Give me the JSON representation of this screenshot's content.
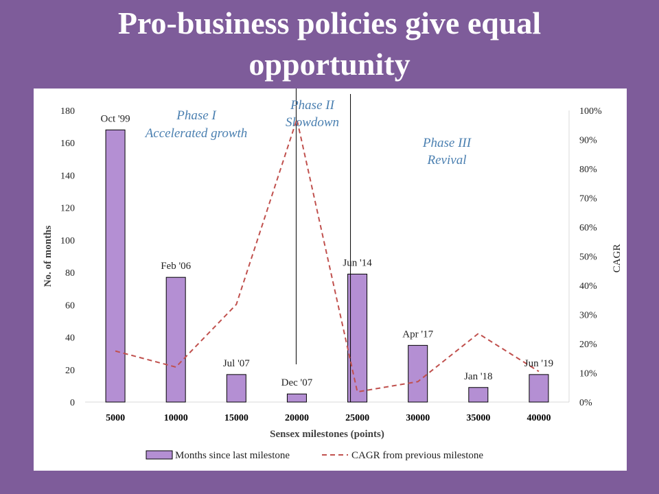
{
  "slide": {
    "title_line1": "Pro-business policies give equal",
    "title_line2": "opportunity",
    "background_color": "#7e5c9a"
  },
  "chart_data": {
    "type": "bar",
    "categories": [
      "5000",
      "10000",
      "15000",
      "20000",
      "25000",
      "30000",
      "35000",
      "40000"
    ],
    "bar_labels": [
      "Oct '99",
      "Feb '06",
      "Jul '07",
      "Dec '07",
      "Jun '14",
      "Apr '17",
      "Jan '18",
      "Jun '19"
    ],
    "series": [
      {
        "name": "Months since last milestone",
        "type": "bar",
        "axis": "left",
        "color": "#b48fd3",
        "values": [
          168,
          77,
          17,
          5,
          79,
          35,
          9,
          17
        ]
      },
      {
        "name": "CAGR from previous milestone",
        "type": "line",
        "style": "dashed",
        "axis": "right",
        "color": "#c0504d",
        "values": [
          0.175,
          0.12,
          0.335,
          0.97,
          0.035,
          0.07,
          0.235,
          0.105
        ]
      }
    ],
    "xlabel": "Sensex milestones (points)",
    "ylabel": "No. of months",
    "y2label": "CAGR",
    "ylim": [
      0,
      180
    ],
    "yticks": [
      "0",
      "20",
      "40",
      "60",
      "80",
      "100",
      "120",
      "140",
      "160",
      "180"
    ],
    "y2lim": [
      0,
      1
    ],
    "y2ticks": [
      "0%",
      "10%",
      "20%",
      "30%",
      "40%",
      "50%",
      "60%",
      "70%",
      "80%",
      "90%",
      "100%"
    ],
    "phase_dividers": [
      3,
      4
    ],
    "phases": [
      {
        "line1": "Phase I",
        "line2": "Accelerated growth"
      },
      {
        "line1": "Phase II",
        "line2": "Slowdown"
      },
      {
        "line1": "Phase III",
        "line2": "Revival"
      }
    ],
    "grid": false,
    "legend_position": "bottom"
  }
}
